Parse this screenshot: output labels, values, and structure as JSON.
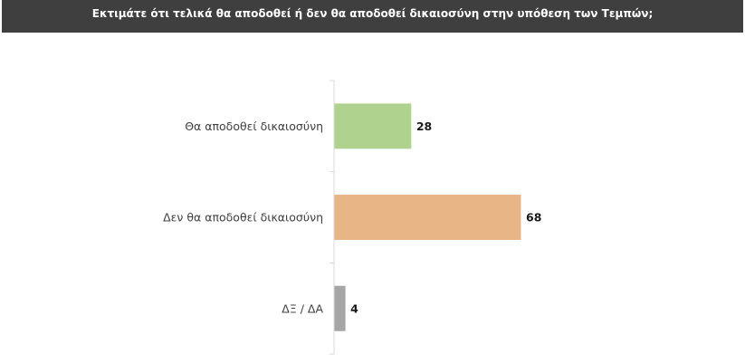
{
  "header": {
    "title": "Εκτιμάτε ότι τελικά θα αποδοθεί ή δεν θα αποδοθεί δικαιοσύνη στην υπόθεση των Τεμπών;"
  },
  "colors": {
    "header_bg": "#3f3f3f",
    "axis": "#d9d9d9"
  },
  "chart_data": {
    "type": "bar",
    "orientation": "horizontal",
    "title": "Εκτιμάτε ότι τελικά θα αποδοθεί ή δεν θα αποδοθεί δικαιοσύνη στην υπόθεση των Τεμπών;",
    "categories": [
      "Θα αποδοθεί δικαιοσύνη",
      "Δεν θα αποδοθεί δικαιοσύνη",
      "ΔΞ / ΔΑ"
    ],
    "values": [
      28,
      68,
      4
    ],
    "data_labels": [
      "28",
      "68",
      "4"
    ],
    "bar_colors": [
      "#b0d28f",
      "#e8b587",
      "#a6a6a6"
    ],
    "xlabel": "",
    "ylabel": "",
    "xlim": [
      0,
      100
    ],
    "grid": false,
    "legend": "none"
  }
}
